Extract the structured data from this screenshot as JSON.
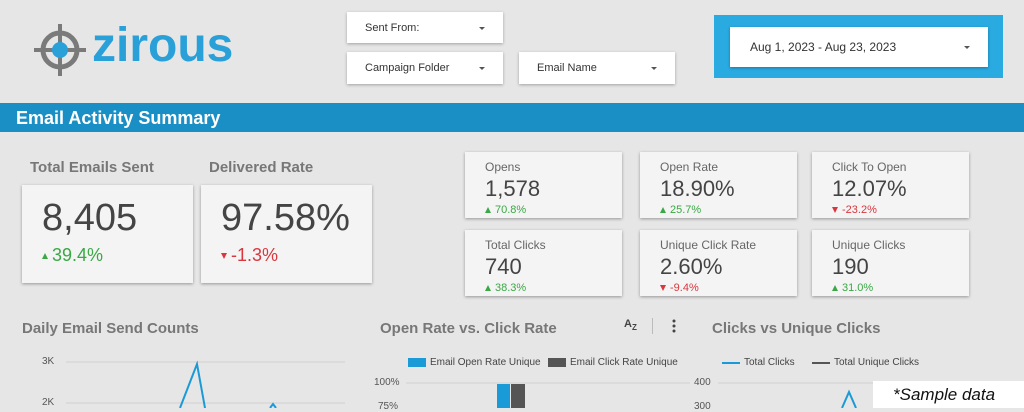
{
  "header": {
    "logo": "zirous",
    "filters": {
      "sent_from": "Sent From:",
      "campaign_folder": "Campaign Folder",
      "email_name": "Email Name",
      "date_range": "Aug 1, 2023 - Aug 23, 2023"
    }
  },
  "banner": "Email Activity Summary",
  "big_kpis": [
    {
      "title": "Total Emails Sent",
      "value": "8,405",
      "delta": "39.4%",
      "trend": "up"
    },
    {
      "title": "Delivered Rate",
      "value": "97.58%",
      "delta": "-1.3%",
      "trend": "down"
    }
  ],
  "kpis": [
    {
      "label": "Opens",
      "value": "1,578",
      "delta": "70.8%",
      "trend": "up"
    },
    {
      "label": "Open Rate",
      "value": "18.90%",
      "delta": "25.7%",
      "trend": "up"
    },
    {
      "label": "Click To Open",
      "value": "12.07%",
      "delta": "-23.2%",
      "trend": "down"
    },
    {
      "label": "Total Clicks",
      "value": "740",
      "delta": "38.3%",
      "trend": "up"
    },
    {
      "label": "Unique Click Rate",
      "value": "2.60%",
      "delta": "-9.4%",
      "trend": "down"
    },
    {
      "label": "Unique Clicks",
      "value": "190",
      "delta": "31.0%",
      "trend": "up"
    }
  ],
  "panels": [
    {
      "title": "Daily Email Send Counts",
      "ticks": [
        "3K",
        "2K"
      ]
    },
    {
      "title": "Open Rate vs. Click Rate",
      "legend": [
        "Email Open Rate Unique",
        "Email Click Rate Unique"
      ],
      "ticks": [
        "100%",
        "75%"
      ]
    },
    {
      "title": "Clicks vs Unique Clicks",
      "legend": [
        "Total Clicks",
        "Total Unique Clicks"
      ],
      "ticks": [
        "400",
        "300"
      ]
    }
  ],
  "note": "*Sample data"
}
